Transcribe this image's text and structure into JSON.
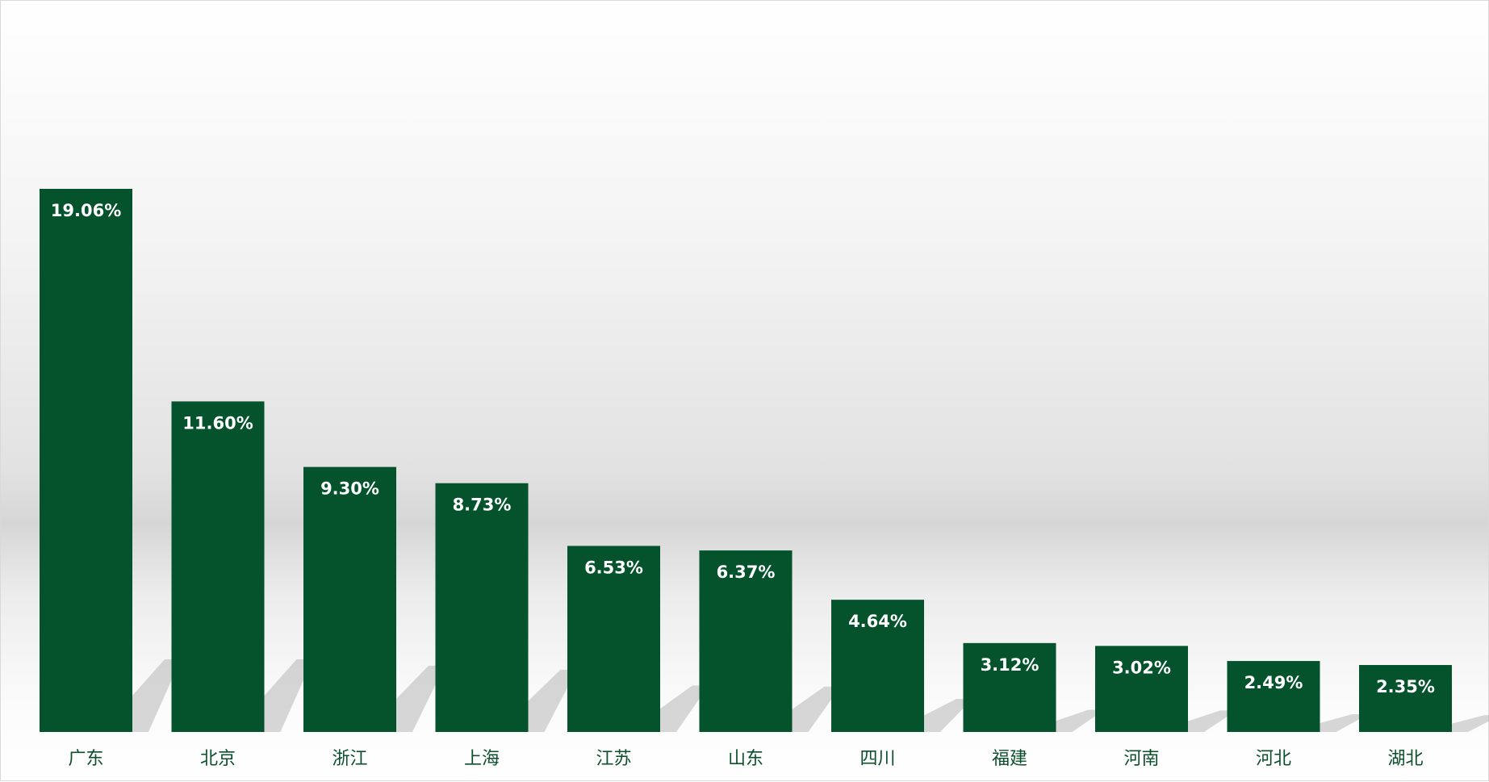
{
  "chart_data": {
    "type": "bar",
    "title": "",
    "xlabel": "",
    "ylabel": "",
    "categories": [
      "广东",
      "北京",
      "浙江",
      "上海",
      "江苏",
      "山东",
      "四川",
      "福建",
      "河南",
      "河北",
      "湖北"
    ],
    "values": [
      19.06,
      11.6,
      9.3,
      8.73,
      6.53,
      6.37,
      4.64,
      3.12,
      3.02,
      2.49,
      2.35
    ],
    "data_labels": [
      "19.06%",
      "11.60%",
      "9.30%",
      "8.73%",
      "6.53%",
      "6.37%",
      "4.64%",
      "3.12%",
      "3.02%",
      "2.49%",
      "2.35%"
    ],
    "ylim": [
      0,
      19.06
    ],
    "grid": false,
    "legend": "none",
    "bar_color": "#04532c",
    "label_color": "#ffffff",
    "category_color": "#0b4f2b"
  }
}
